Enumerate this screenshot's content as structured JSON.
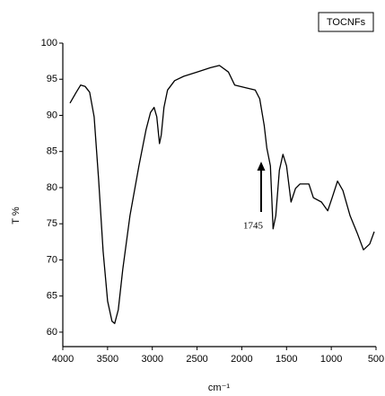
{
  "chart_data": {
    "type": "line",
    "legend": "TOCNFs",
    "xlabel": "cm⁻¹",
    "ylabel": "T %",
    "annotation": "1745",
    "xlim": [
      4000,
      500
    ],
    "xticks": [
      4000,
      3500,
      3000,
      2500,
      2000,
      1500,
      1000,
      500
    ],
    "ylim": [
      58,
      100
    ],
    "yticks": [
      60,
      65,
      70,
      75,
      80,
      85,
      90,
      95,
      100
    ],
    "color": "#000000",
    "x": [
      3920,
      3850,
      3800,
      3750,
      3700,
      3650,
      3600,
      3550,
      3500,
      3450,
      3420,
      3380,
      3330,
      3250,
      3150,
      3070,
      3020,
      2980,
      2950,
      2920,
      2900,
      2870,
      2830,
      2750,
      2650,
      2500,
      2350,
      2250,
      2150,
      2080,
      1950,
      1850,
      1800,
      1750,
      1720,
      1680,
      1650,
      1620,
      1580,
      1540,
      1500,
      1450,
      1400,
      1350,
      1250,
      1200,
      1110,
      1040,
      990,
      930,
      870,
      790,
      710,
      640,
      570,
      520
    ],
    "values": [
      91.7,
      93.2,
      94.2,
      94.0,
      93.2,
      89.8,
      81.1,
      71.2,
      64.3,
      61.5,
      61.2,
      63.1,
      68.7,
      76.1,
      83.0,
      88.0,
      90.4,
      91.1,
      89.8,
      86.1,
      87.3,
      91.1,
      93.5,
      94.8,
      95.4,
      96.0,
      96.6,
      96.9,
      96.0,
      94.2,
      93.8,
      93.5,
      92.3,
      88.6,
      85.5,
      83.0,
      74.3,
      76.1,
      82.4,
      84.6,
      83.0,
      78.0,
      79.9,
      80.5,
      80.5,
      78.6,
      78.0,
      76.8,
      78.6,
      80.9,
      79.6,
      76.1,
      73.7,
      71.4,
      72.2,
      73.9
    ]
  }
}
